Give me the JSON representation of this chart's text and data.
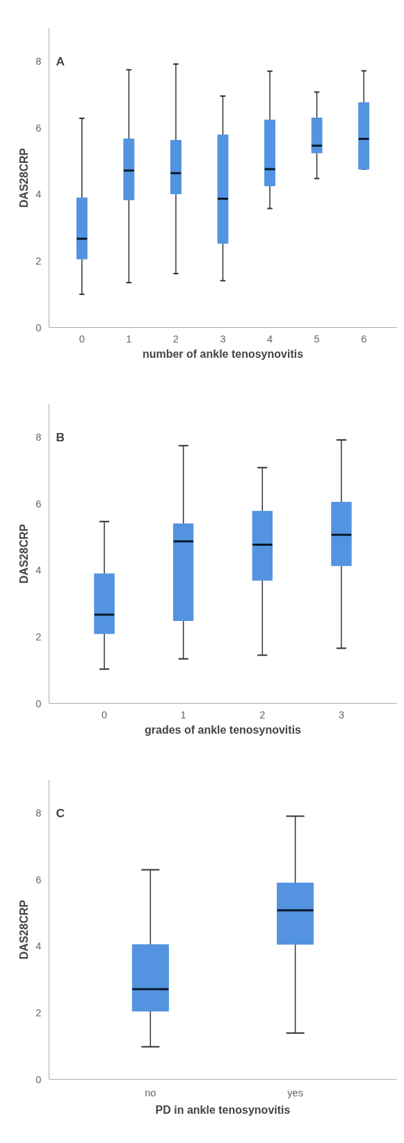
{
  "chart_data": [
    {
      "type": "box",
      "annotations": [
        "A"
      ],
      "xlabel": "number of ankle tenosynovitis",
      "ylabel": "DAS28CRP",
      "color": "#5393e0",
      "ylim": [
        0,
        9
      ],
      "yticks": [
        0,
        2,
        4,
        6,
        8
      ],
      "categories": [
        "0",
        "1",
        "2",
        "3",
        "4",
        "5",
        "6"
      ],
      "boxes": [
        {
          "low": 1.0,
          "q1": 2.06,
          "median": 2.67,
          "q3": 3.9,
          "high": 6.29
        },
        {
          "low": 1.35,
          "q1": 3.84,
          "median": 4.72,
          "q3": 5.67,
          "high": 7.75
        },
        {
          "low": 1.62,
          "q1": 4.02,
          "median": 4.64,
          "q3": 5.63,
          "high": 7.92
        },
        {
          "low": 1.41,
          "q1": 2.53,
          "median": 3.87,
          "q3": 5.79,
          "high": 6.96
        },
        {
          "low": 3.58,
          "q1": 4.26,
          "median": 4.76,
          "q3": 6.24,
          "high": 7.71
        },
        {
          "low": 4.48,
          "q1": 5.25,
          "median": 5.47,
          "q3": 6.3,
          "high": 7.08
        },
        {
          "low": 4.76,
          "q1": 4.76,
          "median": 5.67,
          "q3": 6.76,
          "high": 7.72
        }
      ]
    },
    {
      "type": "box",
      "annotations": [
        "B"
      ],
      "xlabel": "grades of ankle tenosynovitis",
      "ylabel": "DAS28CRP",
      "color": "#5393e0",
      "ylim": [
        0,
        9
      ],
      "yticks": [
        0,
        2,
        4,
        6,
        8
      ],
      "categories": [
        "0",
        "1",
        "2",
        "3"
      ],
      "boxes": [
        {
          "low": 1.03,
          "q1": 2.1,
          "median": 2.67,
          "q3": 3.9,
          "high": 5.47
        },
        {
          "low": 1.34,
          "q1": 2.49,
          "median": 4.87,
          "q3": 5.4,
          "high": 7.75
        },
        {
          "low": 1.45,
          "q1": 3.7,
          "median": 4.77,
          "q3": 5.78,
          "high": 7.09
        },
        {
          "low": 1.66,
          "q1": 4.14,
          "median": 5.07,
          "q3": 6.05,
          "high": 7.92
        }
      ]
    },
    {
      "type": "box",
      "annotations": [
        "C"
      ],
      "xlabel": "PD in ankle tenosynovitis",
      "ylabel": "DAS28CRP",
      "color": "#5393e0",
      "ylim": [
        0,
        9
      ],
      "yticks": [
        0,
        2,
        4,
        6,
        8
      ],
      "categories": [
        "no",
        "yes"
      ],
      "boxes": [
        {
          "low": 0.98,
          "q1": 2.05,
          "median": 2.71,
          "q3": 4.05,
          "high": 6.3
        },
        {
          "low": 1.39,
          "q1": 4.06,
          "median": 5.08,
          "q3": 5.9,
          "high": 7.91
        }
      ]
    }
  ]
}
